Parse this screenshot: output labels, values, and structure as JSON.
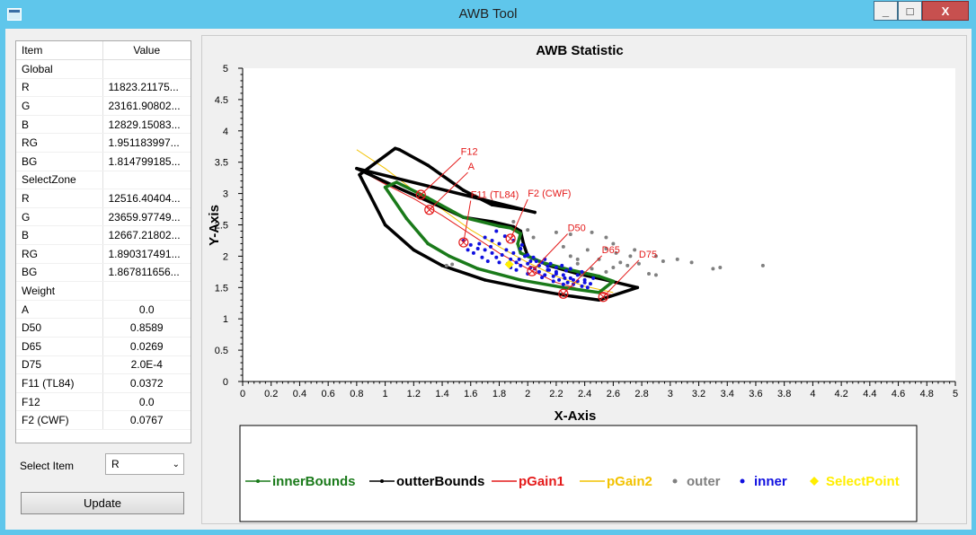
{
  "window": {
    "title": "AWB Tool",
    "min_label": "_",
    "max_label": "□",
    "close_label": "X"
  },
  "table": {
    "headers": {
      "item": "Item",
      "value": "Value"
    },
    "rows": [
      {
        "item": "Global",
        "value": ""
      },
      {
        "item": "R",
        "value": "11823.21175..."
      },
      {
        "item": "G",
        "value": "23161.90802..."
      },
      {
        "item": "B",
        "value": "12829.15083..."
      },
      {
        "item": "RG",
        "value": "1.951183997..."
      },
      {
        "item": "BG",
        "value": "1.814799185..."
      },
      {
        "item": "SelectZone",
        "value": ""
      },
      {
        "item": "R",
        "value": "12516.40404..."
      },
      {
        "item": "G",
        "value": "23659.97749..."
      },
      {
        "item": "B",
        "value": "12667.21802..."
      },
      {
        "item": "RG",
        "value": "1.890317491..."
      },
      {
        "item": "BG",
        "value": "1.867811656..."
      },
      {
        "item": "Weight",
        "value": ""
      },
      {
        "item": "A",
        "value": "0.0",
        "center": true
      },
      {
        "item": "D50",
        "value": "0.8589",
        "center": true
      },
      {
        "item": "D65",
        "value": "0.0269",
        "center": true
      },
      {
        "item": "D75",
        "value": "2.0E-4",
        "center": true
      },
      {
        "item": "F11 (TL84)",
        "value": "0.0372",
        "center": true
      },
      {
        "item": "F12",
        "value": "0.0",
        "center": true
      },
      {
        "item": "F2 (CWF)",
        "value": "0.0767",
        "center": true
      }
    ]
  },
  "controls": {
    "select_label": "Select Item",
    "select_value": "R",
    "select_arrow": "⌄",
    "update_label": "Update"
  },
  "colors": {
    "inner": "#1a7a1a",
    "outer": "#000000",
    "pGain1": "#e41a1a",
    "pGain2": "#f2c200",
    "outer_pts": "#808080",
    "inner_pts": "#1010e0",
    "select": "#ffee00",
    "labels": "#e41a1a"
  },
  "chart_data": {
    "type": "scatter",
    "title": "AWB Statistic",
    "xlabel": "X-Axis",
    "ylabel": "Y-Axis",
    "xlim": [
      0,
      5
    ],
    "ylim": [
      0,
      5
    ],
    "x_ticks": [
      "0",
      "0.2",
      "0.4",
      "0.6",
      "0.8",
      "1",
      "1.2",
      "1.4",
      "1.6",
      "1.8",
      "2",
      "2.2",
      "2.4",
      "2.6",
      "2.8",
      "3",
      "3.2",
      "3.4",
      "3.6",
      "3.8",
      "4",
      "4.2",
      "4.4",
      "4.6",
      "4.8",
      "5"
    ],
    "y_ticks": [
      "0",
      "0.5",
      "1",
      "1.5",
      "2",
      "2.5",
      "3",
      "3.5",
      "4",
      "4.5",
      "5"
    ],
    "legend": [
      {
        "name": "innerBounds",
        "style": "line-dot",
        "color": "#1a7a1a"
      },
      {
        "name": "outterBounds",
        "style": "line-dot",
        "color": "#000000"
      },
      {
        "name": "pGain1",
        "style": "line",
        "color": "#e41a1a"
      },
      {
        "name": "pGain2",
        "style": "line",
        "color": "#f2c200"
      },
      {
        "name": "outer",
        "style": "dot",
        "color": "#808080"
      },
      {
        "name": "inner",
        "style": "dot",
        "color": "#1010e0"
      },
      {
        "name": "SelectPoint",
        "style": "diamond",
        "color": "#ffee00"
      }
    ],
    "outterBounds": [
      [
        0.8,
        3.4
      ],
      [
        1.1,
        3.08
      ],
      [
        1.35,
        2.83
      ],
      [
        1.55,
        2.62
      ],
      [
        1.75,
        2.55
      ],
      [
        1.9,
        2.47
      ],
      [
        1.95,
        2.4
      ],
      [
        1.97,
        2.2
      ],
      [
        2.0,
        2.0
      ],
      [
        2.15,
        1.85
      ],
      [
        2.35,
        1.72
      ],
      [
        2.55,
        1.62
      ],
      [
        2.77,
        1.5
      ],
      [
        2.5,
        1.3
      ],
      [
        2.25,
        1.38
      ],
      [
        2.0,
        1.48
      ],
      [
        1.7,
        1.62
      ],
      [
        1.4,
        1.85
      ],
      [
        1.2,
        2.1
      ],
      [
        1.0,
        2.5
      ],
      [
        0.82,
        3.3
      ],
      [
        1.07,
        3.72
      ],
      [
        1.1,
        3.7
      ],
      [
        1.3,
        3.45
      ],
      [
        1.55,
        3.05
      ],
      [
        1.75,
        2.82
      ],
      [
        1.95,
        2.75
      ],
      [
        2.05,
        2.7
      ]
    ],
    "innerBounds": [
      [
        1.08,
        3.18
      ],
      [
        1.3,
        2.93
      ],
      [
        1.55,
        2.62
      ],
      [
        1.8,
        2.48
      ],
      [
        1.88,
        2.45
      ],
      [
        1.95,
        2.36
      ],
      [
        1.93,
        2.2
      ],
      [
        1.95,
        2.05
      ],
      [
        2.1,
        1.9
      ],
      [
        2.3,
        1.78
      ],
      [
        2.5,
        1.68
      ],
      [
        2.6,
        1.6
      ],
      [
        2.5,
        1.42
      ],
      [
        2.25,
        1.5
      ],
      [
        1.95,
        1.62
      ],
      [
        1.65,
        1.8
      ],
      [
        1.45,
        2.0
      ],
      [
        1.3,
        2.2
      ],
      [
        1.15,
        2.6
      ],
      [
        1.0,
        3.1
      ]
    ],
    "pGain1": [
      [
        0.8,
        3.4
      ],
      [
        1.0,
        3.15
      ],
      [
        1.2,
        2.92
      ],
      [
        1.4,
        2.65
      ],
      [
        1.6,
        2.35
      ],
      [
        1.8,
        2.05
      ],
      [
        2.0,
        1.8
      ],
      [
        2.2,
        1.58
      ],
      [
        2.4,
        1.45
      ],
      [
        2.6,
        1.38
      ]
    ],
    "pGain2": [
      [
        0.8,
        3.7
      ],
      [
        1.0,
        3.4
      ],
      [
        1.2,
        3.05
      ],
      [
        1.4,
        2.75
      ],
      [
        1.6,
        2.42
      ],
      [
        1.8,
        2.15
      ],
      [
        2.0,
        1.9
      ],
      [
        2.2,
        1.68
      ],
      [
        2.4,
        1.52
      ],
      [
        2.6,
        1.42
      ]
    ],
    "illuminants": [
      {
        "name": "F12",
        "x": 1.25,
        "y": 2.98,
        "lx": 1.53,
        "ly": 3.62
      },
      {
        "name": "A",
        "x": 1.31,
        "y": 2.74,
        "lx": 1.58,
        "ly": 3.38
      },
      {
        "name": "F11 (TL84)",
        "x": 1.55,
        "y": 2.22,
        "lx": 1.6,
        "ly": 2.93
      },
      {
        "name": "F2 (CWF)",
        "x": 1.88,
        "y": 2.28,
        "lx": 2.0,
        "ly": 2.95
      },
      {
        "name": "D50",
        "x": 2.03,
        "y": 1.76,
        "lx": 2.28,
        "ly": 2.4
      },
      {
        "name": "D65",
        "x": 2.25,
        "y": 1.4,
        "lx": 2.52,
        "ly": 2.05
      },
      {
        "name": "D75",
        "x": 2.53,
        "y": 1.35,
        "lx": 2.78,
        "ly": 1.98
      }
    ],
    "outer_points": [
      [
        1.43,
        1.85
      ],
      [
        1.47,
        1.87
      ],
      [
        2.04,
        2.3
      ],
      [
        2.2,
        2.38
      ],
      [
        2.3,
        2.35
      ],
      [
        2.45,
        2.38
      ],
      [
        2.55,
        2.3
      ],
      [
        2.6,
        2.2
      ],
      [
        2.42,
        2.1
      ],
      [
        2.3,
        2.0
      ],
      [
        2.35,
        1.95
      ],
      [
        2.5,
        1.95
      ],
      [
        2.65,
        1.9
      ],
      [
        2.72,
        2.0
      ],
      [
        2.78,
        1.88
      ],
      [
        2.85,
        1.72
      ],
      [
        2.9,
        2.0
      ],
      [
        2.7,
        1.85
      ],
      [
        2.6,
        1.82
      ],
      [
        2.55,
        1.75
      ],
      [
        2.45,
        1.8
      ],
      [
        2.35,
        1.88
      ],
      [
        2.75,
        2.1
      ],
      [
        2.95,
        1.92
      ],
      [
        3.05,
        1.95
      ],
      [
        3.15,
        1.9
      ],
      [
        2.9,
        1.7
      ],
      [
        3.3,
        1.8
      ],
      [
        3.35,
        1.82
      ],
      [
        3.65,
        1.85
      ],
      [
        2.25,
        2.15
      ],
      [
        2.62,
        2.05
      ],
      [
        2.38,
        1.7
      ],
      [
        1.9,
        2.55
      ],
      [
        2.0,
        2.42
      ],
      [
        2.55,
        2.12
      ]
    ],
    "inner_points": [
      [
        1.55,
        2.25
      ],
      [
        1.6,
        2.18
      ],
      [
        1.65,
        2.12
      ],
      [
        1.7,
        2.1
      ],
      [
        1.75,
        2.05
      ],
      [
        1.78,
        1.98
      ],
      [
        1.8,
        2.2
      ],
      [
        1.85,
        2.1
      ],
      [
        1.88,
        1.95
      ],
      [
        1.9,
        2.05
      ],
      [
        1.92,
        1.9
      ],
      [
        1.95,
        1.85
      ],
      [
        1.98,
        2.0
      ],
      [
        2.0,
        1.88
      ],
      [
        2.02,
        1.82
      ],
      [
        2.05,
        1.8
      ],
      [
        2.08,
        1.75
      ],
      [
        2.1,
        1.9
      ],
      [
        2.12,
        1.7
      ],
      [
        2.15,
        1.78
      ],
      [
        2.18,
        1.68
      ],
      [
        2.2,
        1.75
      ],
      [
        2.22,
        1.62
      ],
      [
        2.25,
        1.7
      ],
      [
        2.28,
        1.58
      ],
      [
        2.3,
        1.65
      ],
      [
        2.32,
        1.55
      ],
      [
        2.35,
        1.6
      ],
      [
        2.38,
        1.52
      ],
      [
        2.4,
        1.58
      ],
      [
        2.42,
        1.5
      ],
      [
        1.7,
        2.3
      ],
      [
        1.75,
        2.25
      ],
      [
        1.82,
        2.02
      ],
      [
        1.86,
        1.88
      ],
      [
        1.95,
        2.12
      ],
      [
        2.0,
        2.02
      ],
      [
        2.06,
        1.92
      ],
      [
        2.14,
        1.84
      ],
      [
        2.2,
        1.82
      ],
      [
        2.27,
        1.77
      ],
      [
        2.35,
        1.7
      ],
      [
        1.62,
        2.05
      ],
      [
        1.68,
        1.98
      ],
      [
        1.72,
        1.92
      ],
      [
        1.92,
        1.78
      ],
      [
        2.0,
        1.72
      ],
      [
        2.1,
        1.66
      ],
      [
        2.18,
        1.6
      ],
      [
        2.25,
        1.55
      ],
      [
        1.84,
        2.32
      ],
      [
        1.78,
        2.4
      ],
      [
        1.9,
        2.25
      ],
      [
        1.96,
        2.18
      ],
      [
        2.04,
        1.98
      ],
      [
        2.12,
        1.95
      ],
      [
        2.16,
        1.88
      ],
      [
        2.24,
        1.85
      ],
      [
        2.3,
        1.8
      ],
      [
        2.38,
        1.75
      ],
      [
        2.46,
        1.65
      ],
      [
        1.58,
        2.1
      ],
      [
        1.66,
        2.2
      ],
      [
        1.74,
        2.15
      ],
      [
        1.8,
        1.9
      ],
      [
        1.88,
        1.82
      ],
      [
        1.94,
        1.95
      ],
      [
        2.02,
        1.92
      ],
      [
        2.08,
        1.85
      ],
      [
        2.14,
        1.78
      ],
      [
        2.2,
        1.72
      ],
      [
        2.26,
        1.65
      ],
      [
        2.32,
        1.62
      ],
      [
        2.4,
        1.62
      ],
      [
        2.44,
        1.56
      ]
    ],
    "select_point": [
      1.87,
      1.87
    ]
  }
}
